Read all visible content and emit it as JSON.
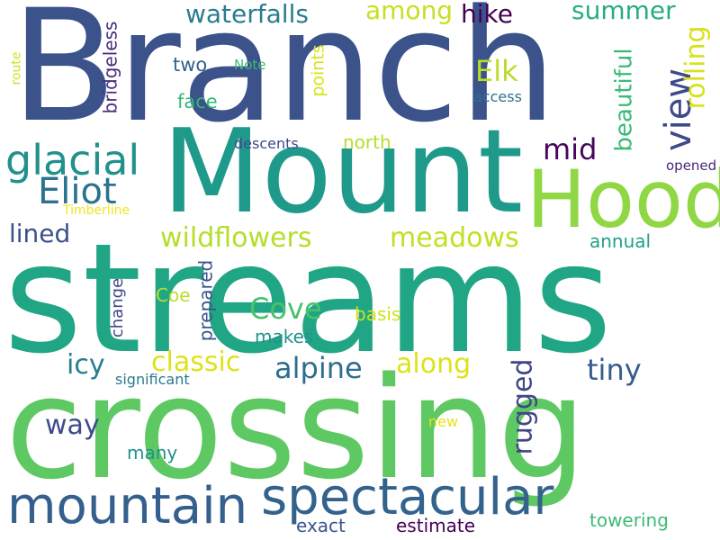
{
  "words": {
    "branch": {
      "text": "Branch",
      "color": "#3b528b"
    },
    "mount": {
      "text": "Mount",
      "color": "#1f9a8a"
    },
    "streams": {
      "text": "streams",
      "color": "#21a685"
    },
    "crossing": {
      "text": "crossing",
      "color": "#5ec962"
    },
    "hood": {
      "text": "Hood",
      "color": "#8fd744"
    },
    "spectacular": {
      "text": "spectacular",
      "color": "#33638d"
    },
    "mountain": {
      "text": "mountain",
      "color": "#355f8d"
    },
    "glacial": {
      "text": "glacial",
      "color": "#21918c"
    },
    "eliot": {
      "text": "Eliot",
      "color": "#2c728e"
    },
    "view": {
      "text": "view",
      "color": "#3e4a89"
    },
    "wildflowers": {
      "text": "wildflowers",
      "color": "#b5de2b"
    },
    "meadows": {
      "text": "meadows",
      "color": "#c2df23"
    },
    "waterfalls": {
      "text": "waterfalls",
      "color": "#287d8e"
    },
    "among": {
      "text": "among",
      "color": "#c8e020"
    },
    "hike": {
      "text": "hike",
      "color": "#440154"
    },
    "summer": {
      "text": "summer",
      "color": "#27ad81"
    },
    "rolling": {
      "text": "rolling",
      "color": "#d8e219"
    },
    "beautiful": {
      "text": "beautiful",
      "color": "#3aba76"
    },
    "elk": {
      "text": "Elk",
      "color": "#b8de29"
    },
    "mid": {
      "text": "mid",
      "color": "#46085c"
    },
    "lined": {
      "text": "lined",
      "color": "#3b528b"
    },
    "alpine": {
      "text": "alpine",
      "color": "#2e6e8e"
    },
    "along": {
      "text": "along",
      "color": "#dde318"
    },
    "tiny": {
      "text": "tiny",
      "color": "#365c8d"
    },
    "rugged": {
      "text": "rugged",
      "color": "#404688"
    },
    "classic": {
      "text": "classic",
      "color": "#dde318"
    },
    "icy": {
      "text": "icy",
      "color": "#277f8e"
    },
    "cove": {
      "text": "Cove",
      "color": "#4ac16d"
    },
    "way": {
      "text": "way",
      "color": "#3e4c8a"
    },
    "bridgeless": {
      "text": "bridgeless",
      "color": "#472d7b"
    },
    "two": {
      "text": "two",
      "color": "#34618d"
    },
    "face": {
      "text": "face",
      "color": "#35b779"
    },
    "points": {
      "text": "points",
      "color": "#dae319"
    },
    "access": {
      "text": "access",
      "color": "#2c728e"
    },
    "note": {
      "text": "Note",
      "color": "#3dbc74"
    },
    "route": {
      "text": "route",
      "color": "#d0e11c"
    },
    "descents": {
      "text": "descents",
      "color": "#3e4989"
    },
    "north": {
      "text": "north",
      "color": "#b5de2b"
    },
    "opened": {
      "text": "opened",
      "color": "#482677"
    },
    "timberline": {
      "text": "Timberline",
      "color": "#f1e51d"
    },
    "annual": {
      "text": "annual",
      "color": "#1fa188"
    },
    "prepared": {
      "text": "prepared",
      "color": "#3b528b"
    },
    "change": {
      "text": "change",
      "color": "#3f4788"
    },
    "coe": {
      "text": "Coe",
      "color": "#bade28"
    },
    "basis": {
      "text": "basis",
      "color": "#d0e11c"
    },
    "makes": {
      "text": "makes",
      "color": "#20928c"
    },
    "significant": {
      "text": "significant",
      "color": "#2a788e"
    },
    "new": {
      "text": "new",
      "color": "#e5e419"
    },
    "many": {
      "text": "many",
      "color": "#21918c"
    },
    "exact": {
      "text": "exact",
      "color": "#39568c"
    },
    "estimate": {
      "text": "estimate",
      "color": "#440154"
    },
    "towering": {
      "text": "towering",
      "color": "#3cbb75"
    }
  }
}
